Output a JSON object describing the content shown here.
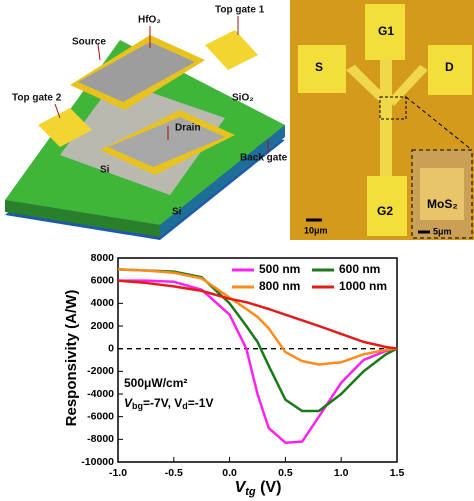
{
  "device_schematic": {
    "labels": [
      "Source",
      "HfO₂",
      "Top gate 1",
      "SiO₂",
      "Top gate 2",
      "Drain",
      "Si",
      "Back gate",
      "Si"
    ]
  },
  "micrograph": {
    "labels": [
      "G1",
      "S",
      "D",
      "G2",
      "MoS₂",
      "10μm",
      "5μm"
    ]
  },
  "chart_data": {
    "type": "line",
    "x_label": {
      "symbol": "V",
      "subscript": "tg",
      "unit": " (V)"
    },
    "y_label": "Responsivity (A/W)",
    "annotation": {
      "line1": "500μW/cm²",
      "line2": [
        "V",
        "bg",
        "=-7V, V",
        "d",
        "=-1V"
      ]
    },
    "x": [
      -1.0,
      -0.75,
      -0.5,
      -0.25,
      0.0,
      0.15,
      0.25,
      0.35,
      0.5,
      0.65,
      0.8,
      1.0,
      1.2,
      1.4,
      1.5
    ],
    "series": [
      {
        "name": "500 nm",
        "color": "#ff22ee",
        "values": [
          6000,
          6000,
          5900,
          5200,
          3000,
          0,
          -4000,
          -7000,
          -8300,
          -8200,
          -6000,
          -3000,
          -1000,
          -200,
          0
        ]
      },
      {
        "name": "600 nm",
        "color": "#1a7a1a",
        "values": [
          7000,
          6900,
          6800,
          6300,
          4000,
          2000,
          600,
          -1500,
          -4500,
          -5500,
          -5500,
          -4000,
          -2000,
          -500,
          0
        ]
      },
      {
        "name": "800 nm",
        "color": "#ff8c1a",
        "values": [
          7000,
          6900,
          6700,
          6200,
          4500,
          3500,
          2800,
          1800,
          -300,
          -1100,
          -1400,
          -1200,
          -500,
          -100,
          0
        ]
      },
      {
        "name": "1000 nm",
        "color": "#e21b1b",
        "values": [
          6000,
          5800,
          5500,
          5100,
          4400,
          4100,
          3800,
          3500,
          3000,
          2500,
          2000,
          1300,
          600,
          150,
          0
        ]
      }
    ],
    "xlim": [
      -1.0,
      1.5
    ],
    "xticks": [
      {
        "value": -1.0,
        "label": "-1.0"
      },
      -0.5,
      {
        "value": 0.0,
        "label": "0.0"
      },
      0.5,
      {
        "value": 1.0,
        "label": "1.0"
      },
      1.5
    ],
    "ylim": [
      -10000,
      8000
    ],
    "yticks": [
      -10000,
      -8000,
      -6000,
      -4000,
      -2000,
      0,
      2000,
      4000,
      6000,
      8000
    ],
    "zero_line": true,
    "grid": false,
    "legend": "upper right"
  }
}
